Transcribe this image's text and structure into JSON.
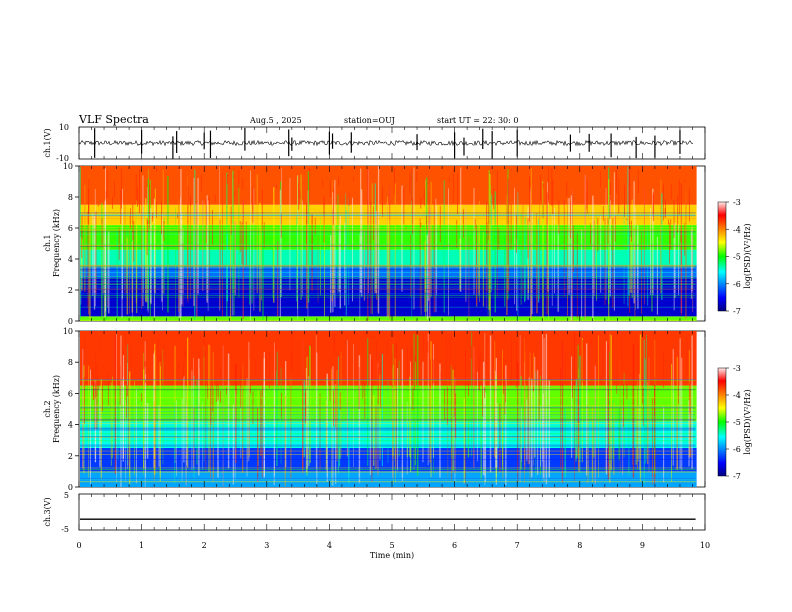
{
  "header": {
    "title": "VLF Spectra",
    "date": "Aug.5 , 2025",
    "station": "station=OUJ",
    "start": "start UT = 22: 30: 0"
  },
  "chart_data": [
    {
      "type": "line",
      "name": "ch1-waveform",
      "ylabel": "ch.1(V)",
      "ylim": [
        -10,
        10
      ],
      "yticks": [
        "10",
        "-10"
      ],
      "baseline": 0,
      "noise_amplitude": 1.5,
      "spike_times_min": [
        0.25,
        1.0,
        1.5,
        1.56,
        2.0,
        2.1,
        2.65,
        3.35,
        3.4,
        4.0,
        4.05,
        4.35,
        5.4,
        6.0,
        6.15,
        6.45,
        6.6,
        7.0,
        7.85,
        8.15,
        8.5,
        8.9,
        9.2,
        9.6
      ],
      "xlim": [
        0,
        10
      ]
    },
    {
      "type": "heatmap",
      "name": "ch1-spectrogram",
      "ylabel": "ch.1 Frequency (kHz)",
      "yticks": [
        "0",
        "2",
        "4",
        "6",
        "8",
        "10"
      ],
      "ylim": [
        0,
        10
      ],
      "xlim": [
        0,
        9.85
      ],
      "colorbar": {
        "label": "log(PSD)(V²/Hz)",
        "min": -7,
        "max": -3,
        "ticks": [
          "-3",
          "-4",
          "-5",
          "-6",
          "-7"
        ]
      },
      "bands": [
        {
          "fmin": 0.0,
          "fmax": 0.3,
          "logpsd": -4.8
        },
        {
          "fmin": 0.3,
          "fmax": 2.8,
          "logpsd": -6.7
        },
        {
          "fmin": 2.8,
          "fmax": 3.6,
          "logpsd": -6.1
        },
        {
          "fmin": 3.6,
          "fmax": 4.6,
          "logpsd": -5.4
        },
        {
          "fmin": 4.6,
          "fmax": 6.2,
          "logpsd": -4.9
        },
        {
          "fmin": 6.2,
          "fmax": 7.5,
          "logpsd": -4.3
        },
        {
          "fmin": 7.5,
          "fmax": 10.0,
          "logpsd": -3.8
        }
      ]
    },
    {
      "type": "heatmap",
      "name": "ch2-spectrogram",
      "ylabel": "ch.2 Frequency (kHz)",
      "yticks": [
        "0",
        "2",
        "4",
        "6",
        "8",
        "10"
      ],
      "ylim": [
        0,
        10
      ],
      "xlim": [
        0,
        9.85
      ],
      "colorbar": {
        "label": "log(PSD)(V²/Hz)",
        "min": -7,
        "max": -3,
        "ticks": [
          "-3",
          "-4",
          "-5",
          "-6",
          "-7"
        ]
      },
      "bands": [
        {
          "fmin": 0.0,
          "fmax": 1.0,
          "logpsd": -5.9
        },
        {
          "fmin": 1.0,
          "fmax": 2.5,
          "logpsd": -6.3
        },
        {
          "fmin": 2.5,
          "fmax": 4.2,
          "logpsd": -5.5
        },
        {
          "fmin": 4.2,
          "fmax": 6.5,
          "logpsd": -4.8
        },
        {
          "fmin": 6.5,
          "fmax": 10.0,
          "logpsd": -3.7
        }
      ]
    },
    {
      "type": "line",
      "name": "ch3-waveform",
      "ylabel": "ch.3(V)",
      "ylim": [
        -5,
        5
      ],
      "yticks": [
        "5",
        "-5"
      ],
      "value": -2,
      "xlim": [
        0,
        9.85
      ]
    }
  ],
  "xaxis": {
    "label": "Time (min)",
    "ticks": [
      "0",
      "1",
      "2",
      "3",
      "4",
      "5",
      "6",
      "7",
      "8",
      "9",
      "10"
    ],
    "xlim": [
      0,
      10
    ]
  }
}
